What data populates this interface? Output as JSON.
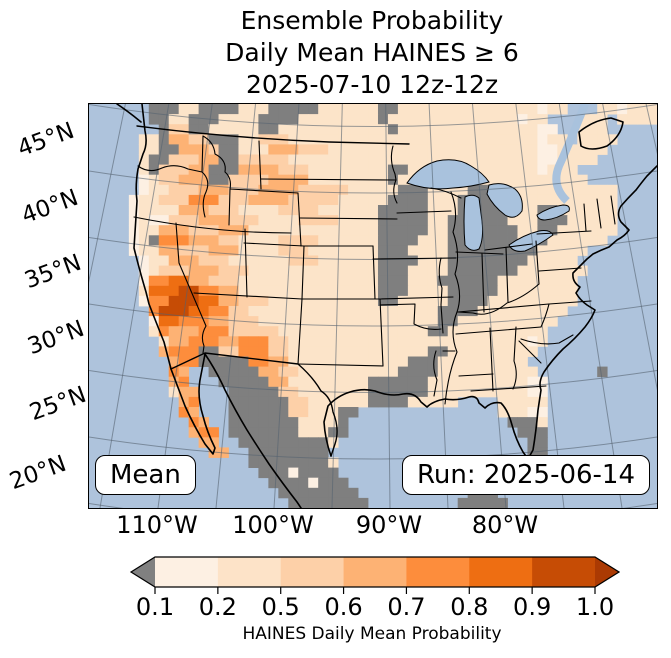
{
  "title": {
    "line1": "Ensemble Probability",
    "line2": "Daily Mean HAINES ≥ 6",
    "line3": "2025-07-10 12z-12z"
  },
  "map": {
    "badge_left": "Mean",
    "badge_right": "Run: 2025-06-14",
    "y_axis_labels": [
      "45°N",
      "40°N",
      "35°N",
      "30°N",
      "25°N",
      "20°N"
    ],
    "x_axis_labels": [
      "110°W",
      "100°W",
      "90°W",
      "80°W"
    ],
    "ocean_color": "#aec3dc",
    "lake_color": "#a9c2dd",
    "grid": {
      "cols": 57,
      "rows": 40,
      "palette": {
        "a": "#fdf0e3",
        "b": "#fce4c9",
        "c": "#fdd0a8",
        "d": "#fdb274",
        "e": "#fd8d3c",
        "f": "#ee6e12",
        "h": "#c64c05",
        "g": "#7f7f7f"
      },
      "legend": {
        "a": "0.1-0.2",
        "b": "0.2-0.5",
        "c": "0.5-0.6",
        "d": "0.6-0.7",
        "e": "0.7-0.8",
        "f": "0.8-0.9",
        "h": "0.9-1.0",
        "g": "below 0.1",
        "~": "water/no data"
      },
      "rows_data": [
        "~~~~~~gggbbggggbbbgggggbbbbbbggbbbbbbbbbbbbbbabb~~~bbabbb",
        "~~~~~~ggbbgggbbbbggggbbbbbbbbgbbbbbbbbbbbbbabb~~~bbb~bbbb",
        "~~~~~~~gccggbbbbbggbbbbbbbbbbbgbbbbbbbbbbbbbbaa~~bbb~~~~~",
        "~~~~~bbgddccgggbbcccbbbbbbbbbbbbbbbbbbbbbbbbbabb~bbbb~~~~",
        "~~~~~bbggdddcggbbbdddcccbbbbbbbbbbbbbbbbbbbbbaabbbbb~~~~~",
        "~~~~~bggcccddggcccccbbbbbbbbbbbbbbbbbbbbbbbbbaabbbb~~~~~~",
        "~~~~~bgcccddgggddddcccbbbbbbbbggbbbbbbbbbbbbbabbb~~~~~~~~",
        "~~~~~abccdddggccccddddbbbbbbbbgbbbbbbbbbbbbbbbbbbb~~~~~~~",
        "~~~~~abbcccdddcccddddcccccbbbbbgggbbbbgggbbbbbbbbbbbb~~~~",
        "~~~~abbccceeecccddddcccccbbbbbggggbbbggggbbbbbbbbbbbb~~~~",
        "~~~~abbbbdddcccbbbbccccbbbbbbgggggbbbgggggbbbggbbbbbb~~~~",
        "~~~~abaacccdddcccbbbbccccbbbbgggggbbggggggbbbgggbbbbb~~~~",
        "~~~~abbdddcccdddbbbbbbbbbbbbbgggggbbgggggggbbggbbbbbb~~~~",
        "~~~~abgeeedddccbbbbccccbbbbbbggggbbbgggggggbbgbbbbbb~~~~~",
        "~~~~abbddcccdddbbbbcccbbbbbbbgggbbbbgggggggggbbbbb~~~~~~~",
        "~~~~~abbdddcccbbbbbbcccbbbbbbggggbbbggggggggbbbbb~~~~~~~~",
        "~~~~~abcccdddcccbbbbbbbbbbbbbgggbbbbgggggggbbbbbbb~~~~~~~",
        "~~~~~aeeffddcccbbbbbbbbbbbbbbgggbbbggggggbbbbbbbb~~~~~~~~",
        "~~~~~bfffhheeddbbbbbbbbbbbbbbgggbbbbgggggbbbbbbbb~~~~~~~~",
        "~~~~~aeehhhffddcccbbbbbbbbbbbggbbbbbggggbbbbbbbbb~~~~~~~~",
        "~~~~~~ehhhffeeccbbbbbbbbbbbbbbbbbbbggggbbbbbbbbb~~~~~~~~~",
        "~~~~~~affeeeddcccbbbbbbbbbbbbbbbbbbggbbbbbbbbbb~~~~~~~~~~",
        "~~~~~~bedddeeecccccbbbbbbbbbbbbbbbggbbbbbbbbbb~~~~~~~~~~~",
        "~~~~~~~bddeeeddeeeccbbbbbbbbbbbbbbbbbbbbbbbbab~~~~~~~~~~~",
        "~~~~~~~deeeggcceeeccbbbbbbbbbbbbbbggbbbbbbbbb~~~~~~~~~~~~",
        "~~~~~~~~deegggggeeddbbbbbbbbbbbbgggbbbbbbbbb~~~~~~~~~~~~~",
        "~~~~~~~~ed~~gggggddccbbbbbbbbbbggggbbbbbbbbbb~~~~~~g~~~~~",
        "~~~~~~~~de~~~gggggddbbbbbbbbggggggbbbbbbbbbbaa~~~~~~~~~~~",
        "~~~~~~~~bdd~~~gggggccbbbbbbbggggggbbbbbbbbbbaa~~~~~~~~~~~",
        "~~~~~~~~~de~~~ggggggccbbbbbbggggbbbbb~~~~bbbbb~~~~~~~~~~~",
        "~~~~~~~~~ed~~~ggggggccbbbgg~~~~~~~~~~~~~~bbbaa~~~~~~~~~~~",
        "~~~~~~~~~~ed~~gggggggbbbbg~~~~~~~~~~~~~~~~gggb~~~~~~~~~~~",
        "~~~~~~~~~~dee~gggggggbbbgg~~~~~~~~~~~~~~~~~ggg~~~~~~~~~~~",
        "~~~~~~~~~~~dd~~gggggggggb~~~~~~~~~~~~~~~~~~~gg~~~~~~~~~~~",
        "~~~~~~~~~~~~dd~~gggggggg~~~~~~~~~~~~~~~~~~~~gg~~~~~~~~~~~",
        "~~~~~~~~~~~~~~~~ggggggggb~~~~~~~~~~~~~~~~~~~~~~~~~~~~~~~~",
        "~~~~~~~~~~~~~~~~~gggagggg~~~~~~~~~~~~~~~~~~~~~~~~~~~~~~~~",
        "~~~~~~~~~~~~~~~~~~ggggaggg~~~~~~~~~~~~~~~~~~~~~~~~~~~~~~~",
        "~~~~~~~~~~~~~~~~~~~gggggggg~~~~~~~~~~~ggg~~~~~~~~~~~~~~~~",
        "~~~~~~~~~~~~~~~~~~~~gggggggg~~~~~~~~~ggggg~~~~~~~~~~~~~~~"
      ]
    }
  },
  "colorbar": {
    "ticks": [
      "0.1",
      "0.2",
      "0.5",
      "0.6",
      "0.7",
      "0.8",
      "0.9",
      "1.0"
    ],
    "segment_colors": [
      "#fdf0e3",
      "#fde3c8",
      "#fdd0a8",
      "#fdb274",
      "#fd8d3c",
      "#ee6e12",
      "#c64c05"
    ],
    "under_color": "#808080",
    "over_color": "#ab3a03",
    "label": "HAINES Daily Mean Probability"
  },
  "chart_data": {
    "type": "heatmap",
    "title": "Ensemble Probability Daily Mean HAINES ≥ 6, 2025-07-10 12z-12z",
    "colorbar_label": "HAINES Daily Mean Probability",
    "colorbar_bounds": [
      0.1,
      0.2,
      0.5,
      0.6,
      0.7,
      0.8,
      0.9,
      1.0
    ],
    "x_ticks": [
      "110°W",
      "100°W",
      "90°W",
      "80°W"
    ],
    "y_ticks": [
      "45°N",
      "40°N",
      "35°N",
      "30°N",
      "25°N",
      "20°N"
    ],
    "annotations": [
      "Mean",
      "Run: 2025-06-14"
    ],
    "notes": "Gridded probability field over CONUS; highest probabilities (0.8-1.0) over southern California / western Arizona, secondary maxima (0.6-0.8) over Nevada, Utah, Idaho, Montana, New Mexico and Baja California; below-0.1 (gray) cells over the Midwest, Gulf coast, Mexico and south Florida; water masked light blue."
  }
}
